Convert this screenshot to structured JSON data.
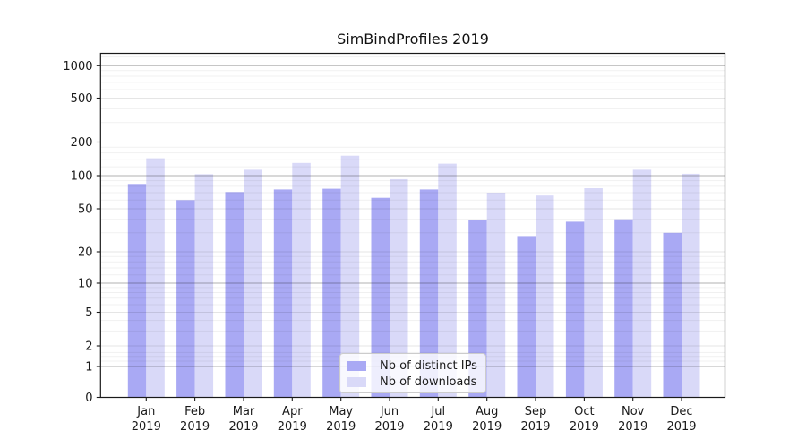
{
  "chart_data": {
    "type": "bar",
    "title": "SimBindProfiles 2019",
    "categories": [
      "Jan",
      "Feb",
      "Mar",
      "Apr",
      "May",
      "Jun",
      "Jul",
      "Aug",
      "Sep",
      "Oct",
      "Nov",
      "Dec"
    ],
    "x_tick_second_line": "2019",
    "series": [
      {
        "key": "distinct-ips",
        "name": "Nb of distinct IPs",
        "color": "#a9a9f4",
        "values": [
          84,
          60,
          71,
          75,
          76,
          63,
          75,
          39,
          28,
          38,
          40,
          30
        ]
      },
      {
        "key": "downloads",
        "name": "Nb of downloads",
        "color": "#d9d9f8",
        "values": [
          143,
          103,
          113,
          130,
          151,
          93,
          128,
          70,
          66,
          77,
          113,
          104
        ]
      }
    ],
    "y_axis": {
      "scale": "symlog",
      "ticks": [
        0,
        1,
        2,
        5,
        10,
        20,
        50,
        100,
        200,
        500,
        1000
      ],
      "top_value": 1330
    },
    "grid": "both",
    "legend_position": "lower center inside"
  }
}
